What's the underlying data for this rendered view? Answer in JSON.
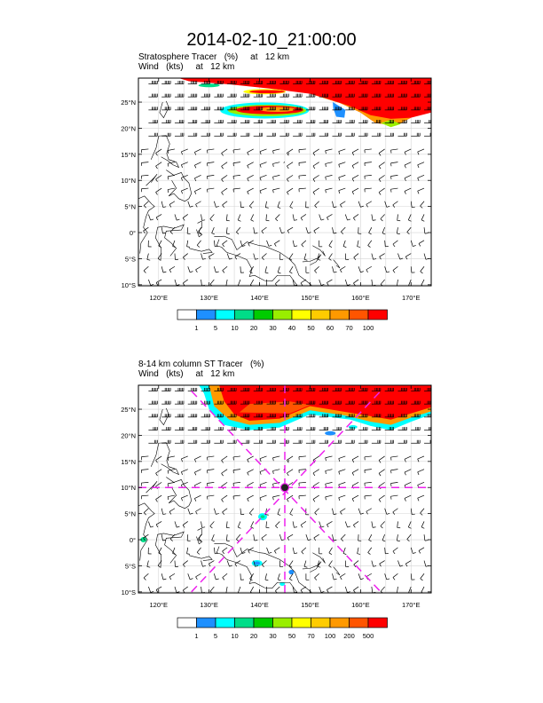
{
  "title": "2014-02-10_21:00:00",
  "panels": [
    {
      "subtitle1": "Stratosphere Tracer   (%)     at   12 km",
      "subtitle2": "Wind   (kts)     at   12 km",
      "lat_labels": [
        "25°N",
        "20°N",
        "15°N",
        "10°N",
        "5°N",
        "0°",
        "5°S",
        "10°S"
      ],
      "lon_labels": [
        "120°E",
        "130°E",
        "140°E",
        "150°E",
        "160°E",
        "170°E"
      ],
      "colorbar_labels": [
        "1",
        "5",
        "10",
        "20",
        "30",
        "40",
        "50",
        "60",
        "70",
        "100"
      ],
      "colorbar_colors": [
        "#ffffff",
        "#1e90ff",
        "#00ffff",
        "#00dd88",
        "#00cc00",
        "#99ee00",
        "#ffff00",
        "#ffcc00",
        "#ff9900",
        "#ff5500",
        "#ff0000"
      ]
    },
    {
      "subtitle1": "8-14 km column ST Tracer   (%)",
      "subtitle2": "Wind   (kts)     at   12 km",
      "lat_labels": [
        "25°N",
        "20°N",
        "15°N",
        "10°N",
        "5°N",
        "0°",
        "5°S",
        "10°S"
      ],
      "lon_labels": [
        "120°E",
        "130°E",
        "140°E",
        "150°E",
        "160°E",
        "170°E"
      ],
      "colorbar_labels": [
        "1",
        "5",
        "10",
        "20",
        "30",
        "50",
        "70",
        "100",
        "200",
        "500"
      ],
      "colorbar_colors": [
        "#ffffff",
        "#1e90ff",
        "#00ffff",
        "#00dd88",
        "#00cc00",
        "#99ee00",
        "#ffff00",
        "#ffcc00",
        "#ff9900",
        "#ff5500",
        "#ff0000"
      ],
      "marker_color": "#ee22ee"
    }
  ]
}
